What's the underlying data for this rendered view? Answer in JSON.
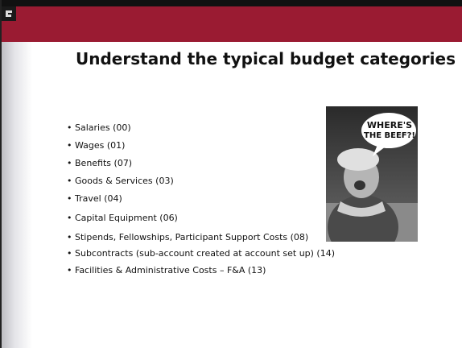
{
  "title": "Understand the typical budget categories",
  "bullets": [
    "Salaries (00)",
    "Wages (01)",
    "Benefits (07)",
    "Goods & Services (03)",
    "Travel (04)",
    "Capital Equipment (06)",
    "Stipends, Fellowships, Participant Support Costs (08)",
    "Subcontracts (sub-account created at account set up) (14)",
    "Facilities & Administrative Costs – F&A (13)"
  ],
  "image": {
    "caption_line1": "WHERE'S",
    "caption_line2": "THE BEEF?!"
  }
}
